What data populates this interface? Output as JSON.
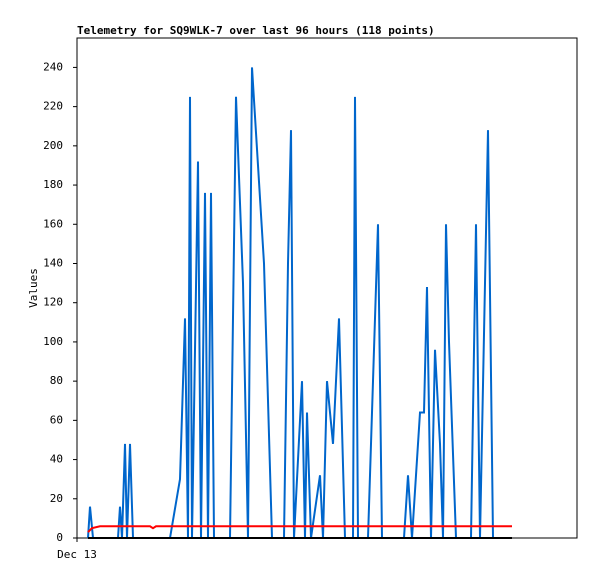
{
  "chart_data": {
    "type": "line",
    "title": "Telemetry for SQ9WLK-7 over last 96 hours (118 points)",
    "ylabel": "Values",
    "xlim": [
      0,
      100
    ],
    "ylim": [
      0,
      255
    ],
    "xticks": [
      {
        "value": 0,
        "label": "Dec 13"
      }
    ],
    "yticks": [
      0,
      20,
      40,
      60,
      80,
      100,
      120,
      140,
      160,
      180,
      200,
      220,
      240
    ],
    "series": [
      {
        "color": "#0066cc",
        "x": [
          2.2,
          2.6,
          3.2,
          8.2,
          8.6,
          9,
          9.6,
          10,
          10.6,
          11.2,
          18.6,
          20.6,
          21.6,
          22.2,
          22.6,
          23,
          24.2,
          24.8,
          25.6,
          26.2,
          26.8,
          27.4,
          30.6,
          31.8,
          33.2,
          34.2,
          35,
          36.2,
          37.4,
          39,
          41.4,
          42.2,
          42.8,
          43.4,
          45,
          45.6,
          46,
          46.8,
          48.6,
          49.2,
          50,
          51.2,
          52.4,
          53.6,
          55.2,
          55.6,
          56.2,
          58.2,
          60.2,
          61,
          65.4,
          66.2,
          67,
          68.6,
          69.4,
          70,
          70.8,
          71.6,
          72.6,
          73.2,
          73.8,
          74.4,
          75.8,
          78.8,
          79.8,
          80.6,
          82.2,
          83.2,
          87
        ],
        "values": [
          0,
          16,
          0,
          0,
          16,
          0,
          48,
          0,
          48,
          0,
          0,
          30,
          112,
          0,
          225,
          0,
          192,
          0,
          176,
          0,
          176,
          0,
          0,
          225,
          130,
          0,
          240,
          190,
          140,
          0,
          0,
          140,
          208,
          0,
          80,
          0,
          64,
          0,
          32,
          0,
          80,
          48,
          112,
          0,
          0,
          225,
          0,
          0,
          160,
          0,
          0,
          32,
          0,
          64,
          64,
          128,
          0,
          96,
          48,
          0,
          160,
          100,
          0,
          0,
          160,
          0,
          208,
          0,
          0
        ]
      },
      {
        "color": "#ff0000",
        "x": [
          2.2,
          3,
          4.6,
          14.6,
          15.2,
          15.8,
          87
        ],
        "values": [
          3,
          5,
          6,
          6,
          5,
          6,
          6
        ]
      },
      {
        "color": "#000000",
        "x": [
          2.2,
          87
        ],
        "values": [
          0,
          0
        ]
      }
    ]
  }
}
